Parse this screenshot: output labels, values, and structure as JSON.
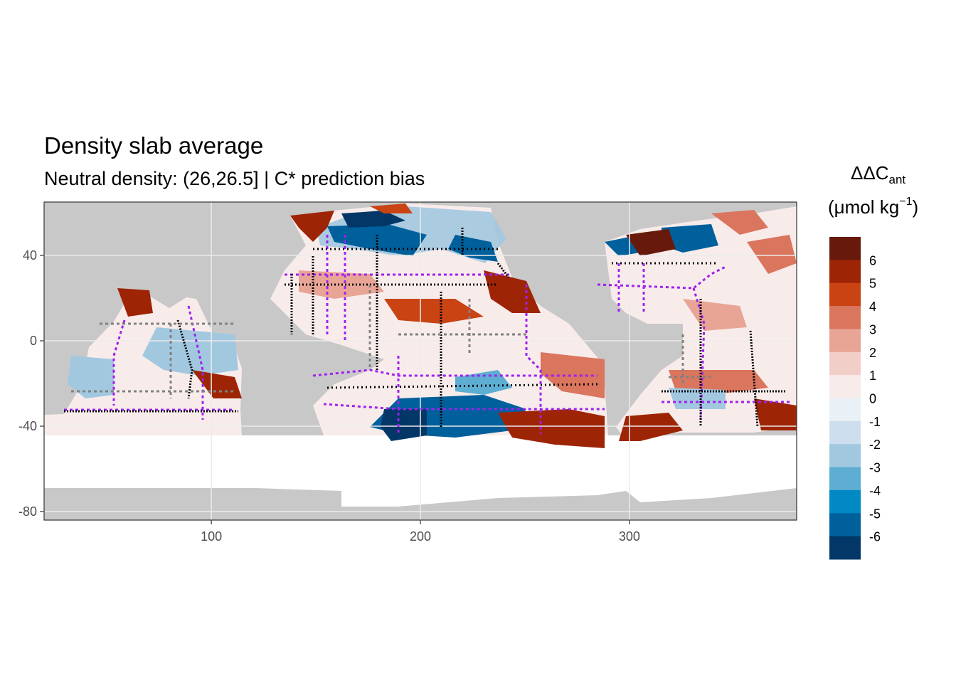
{
  "title": "Density slab average",
  "subtitle": "Neutral density: (26,26.5] | C* prediction bias",
  "legend": {
    "symbol": "ΔΔC",
    "symbol_sub": "ant",
    "unit_open": "(μmol kg",
    "unit_exp": "−1",
    "unit_close": ")",
    "labels": [
      "6",
      "5",
      "4",
      "3",
      "2",
      "1",
      "0",
      "-1",
      "-2",
      "-3",
      "-4",
      "-5",
      "-6"
    ],
    "colors": [
      "#671A0C",
      "#9E2406",
      "#C94313",
      "#DA755E",
      "#E8A596",
      "#F2CEC8",
      "#F8ECEB",
      "#EAF1F6",
      "#CDDFEE",
      "#A2C8E0",
      "#5DAED2",
      "#0189C4",
      "#00609C",
      "#023767"
    ]
  },
  "axes": {
    "x_ticks": [
      100,
      200,
      300
    ],
    "y_ticks": [
      40,
      0,
      -40,
      -80
    ],
    "x_range": [
      20,
      380
    ],
    "y_range": [
      -84,
      65
    ]
  },
  "colors": {
    "land": "#C8C8C8",
    "panel_border": "#333333",
    "gridline": "#EBEBEB",
    "section_lines_primary": "#A020F0",
    "section_points": "#000000",
    "section_points_secondary": "#808080"
  }
}
